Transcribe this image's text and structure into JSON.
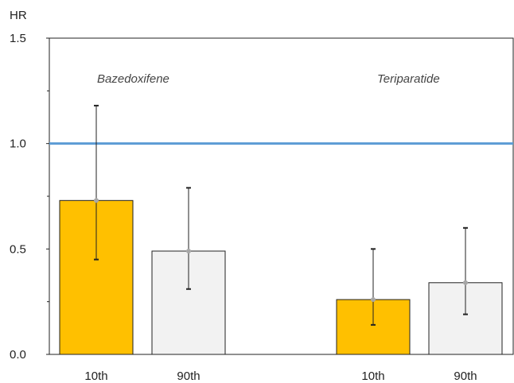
{
  "chart_data": {
    "type": "bar",
    "title": "",
    "xlabel": "",
    "ylabel": "HR",
    "ylim": [
      0,
      1.5
    ],
    "yticks": [
      "0.0",
      "0.5",
      "1.0",
      "1.5"
    ],
    "grid": false,
    "reference_line": {
      "y": 1.0,
      "color": "#5b9bd5"
    },
    "groups": [
      {
        "name": "Bazedoxifene",
        "bars": [
          {
            "category": "10th",
            "value": 0.73,
            "ci_low": 0.45,
            "ci_high": 1.18,
            "color": "#ffc000"
          },
          {
            "category": "90th",
            "value": 0.49,
            "ci_low": 0.31,
            "ci_high": 0.79,
            "color": "#f2f2f2"
          }
        ]
      },
      {
        "name": "Teriparatide",
        "bars": [
          {
            "category": "10th",
            "value": 0.26,
            "ci_low": 0.14,
            "ci_high": 0.5,
            "color": "#ffc000"
          },
          {
            "category": "90th",
            "value": 0.34,
            "ci_low": 0.19,
            "ci_high": 0.6,
            "color": "#f2f2f2"
          }
        ]
      }
    ]
  }
}
